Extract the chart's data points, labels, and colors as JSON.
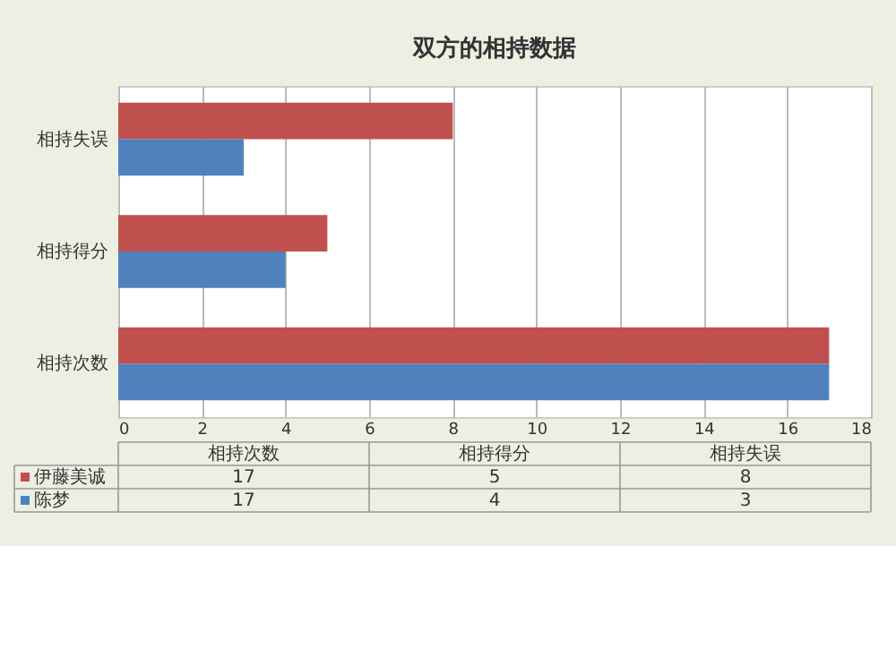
{
  "chart_data": {
    "type": "bar",
    "orientation": "horizontal",
    "title": "双方的相持数据",
    "categories": [
      "相持失误",
      "相持得分",
      "相持次数"
    ],
    "series": [
      {
        "name": "伊藤美诚",
        "color": "#c0504d",
        "values": [
          8,
          5,
          17
        ]
      },
      {
        "name": "陈梦",
        "color": "#4f81bd",
        "values": [
          3,
          4,
          17
        ]
      }
    ],
    "xlim": [
      0,
      18
    ],
    "xticks": [
      0,
      2,
      4,
      6,
      8,
      10,
      12,
      14,
      16,
      18
    ],
    "grid": "x",
    "legend": "bottom",
    "annotations": [
      "17",
      "5",
      "8",
      "17",
      "4",
      "3"
    ]
  }
}
